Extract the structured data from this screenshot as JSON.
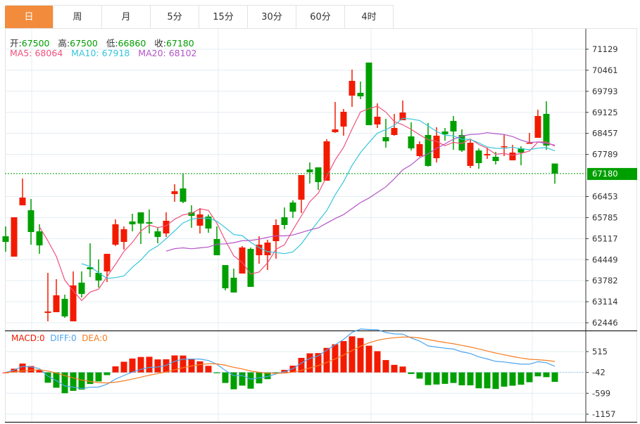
{
  "tabs": [
    {
      "label": "日",
      "active": true
    },
    {
      "label": "周"
    },
    {
      "label": "月"
    },
    {
      "label": "5分"
    },
    {
      "label": "15分"
    },
    {
      "label": "30分"
    },
    {
      "label": "60分"
    },
    {
      "label": "4时"
    }
  ],
  "ohlc_info": {
    "open_label": "开:",
    "open": "67500",
    "high_label": "高:",
    "high": "67500",
    "low_label": "低:",
    "low": "66860",
    "close_label": "收:",
    "close": "67180"
  },
  "ma_info": {
    "ma5": "MA5: 68064",
    "ma10": "MA10: 67918",
    "ma20": "MA20: 68102"
  },
  "macd_info": {
    "macd": "MACD:0",
    "diff": "DIFF:0",
    "dea": "DEA:0"
  },
  "colors": {
    "up": "#f21b00",
    "down": "#009f00",
    "ma5": "#f0507d",
    "ma10": "#36c5dc",
    "ma20": "#b453c6",
    "diff": "#4ba4f0",
    "dea": "#f77b1f",
    "current": "#009f00"
  },
  "chart_data": [
    {
      "type": "candlestick",
      "title": "",
      "y_ticks": [
        "71129",
        "70461",
        "69793",
        "69125",
        "68457",
        "67789",
        "67180",
        "66453",
        "65785",
        "65117",
        "64449",
        "63782",
        "63114",
        "62446"
      ],
      "ylim": [
        62446,
        71129
      ],
      "current_price": "67180",
      "grid": true,
      "candles": [
        [
          65192,
          65504,
          64701,
          65013
        ],
        [
          64545,
          65795,
          64545,
          65795
        ],
        [
          66174,
          67022,
          66174,
          66420
        ],
        [
          66018,
          66375,
          64924,
          65326
        ],
        [
          65348,
          65571,
          64634,
          64902
        ],
        [
          62759,
          64031,
          62491,
          62804
        ],
        [
          62781,
          63830,
          62781,
          63317
        ],
        [
          63205,
          63339,
          62603,
          62647
        ],
        [
          62491,
          64076,
          62491,
          63630
        ],
        [
          63719,
          64076,
          63250,
          63362
        ],
        [
          64210,
          64969,
          63897,
          64143
        ],
        [
          64031,
          64455,
          63563,
          63786
        ],
        [
          64076,
          64634,
          63741,
          64634
        ],
        [
          64924,
          65728,
          64879,
          65571
        ],
        [
          65013,
          65504,
          64768,
          65415
        ],
        [
          65661,
          65906,
          65348,
          65571
        ],
        [
          65951,
          65951,
          64946,
          65594
        ],
        [
          65638,
          66040,
          65281,
          65594
        ],
        [
          65348,
          65482,
          64969,
          65170
        ],
        [
          65281,
          65951,
          65170,
          65683
        ],
        [
          66531,
          66844,
          66286,
          66620
        ],
        [
          66710,
          67178,
          66241,
          66286
        ],
        [
          65951,
          66174,
          65460,
          65839
        ],
        [
          65527,
          66085,
          65281,
          65884
        ],
        [
          65817,
          65884,
          65304,
          65437
        ],
        [
          65103,
          65504,
          64589,
          64589
        ],
        [
          64277,
          64277,
          63473,
          63540
        ],
        [
          63875,
          64165,
          63406,
          63406
        ],
        [
          64009,
          64879,
          64009,
          64835
        ],
        [
          64790,
          64835,
          63585,
          63585
        ],
        [
          64589,
          65192,
          64321,
          64924
        ],
        [
          64589,
          65080,
          64121,
          64991
        ],
        [
          65036,
          65728,
          64478,
          65549
        ],
        [
          65795,
          66107,
          65415,
          65549
        ],
        [
          66263,
          66330,
          65772,
          65973
        ],
        [
          66353,
          67134,
          65928,
          67134
        ],
        [
          67312,
          67536,
          66866,
          67223
        ],
        [
          67379,
          67379,
          66665,
          66911
        ],
        [
          66955,
          68272,
          66955,
          68205
        ],
        [
          68495,
          69455,
          68473,
          68585
        ],
        [
          68674,
          69232,
          68384,
          69143
        ],
        [
          69656,
          70482,
          69299,
          70125
        ],
        [
          69745,
          70102,
          69544,
          69634
        ],
        [
          70705,
          70705,
          68718,
          68718
        ],
        [
          68741,
          69410,
          68629,
          68986
        ],
        [
          68339,
          68919,
          68004,
          68205
        ],
        [
          68406,
          69076,
          68384,
          68629
        ],
        [
          68875,
          69500,
          68875,
          69120
        ],
        [
          68361,
          68808,
          67915,
          67982
        ],
        [
          67736,
          68205,
          67714,
          68116
        ],
        [
          68406,
          68785,
          67402,
          67424
        ],
        [
          67669,
          68652,
          67536,
          68384
        ],
        [
          68518,
          68629,
          68227,
          68428
        ],
        [
          68852,
          69009,
          67937,
          68518
        ],
        [
          68406,
          68585,
          67870,
          67915
        ],
        [
          67424,
          68250,
          67357,
          68160
        ],
        [
          67915,
          67982,
          67335,
          67513
        ],
        [
          67759,
          68004,
          67647,
          67803
        ],
        [
          67714,
          67870,
          67469,
          67580
        ],
        [
          68027,
          68406,
          67736,
          68049
        ],
        [
          67602,
          68094,
          67602,
          67848
        ],
        [
          67982,
          68049,
          67446,
          67848
        ],
        [
          68138,
          68473,
          68138,
          68160
        ],
        [
          68317,
          69210,
          68317,
          69009
        ],
        [
          69076,
          69477,
          67937,
          68071
        ],
        [
          67500,
          67500,
          66860,
          67180
        ]
      ],
      "candle_fields": [
        "open",
        "high",
        "low",
        "close"
      ]
    },
    {
      "type": "bar+line",
      "title": "MACD",
      "y_ticks": [
        "515",
        "-42",
        "-599",
        "-1157"
      ],
      "ylim": [
        -1157,
        515
      ]
    }
  ]
}
